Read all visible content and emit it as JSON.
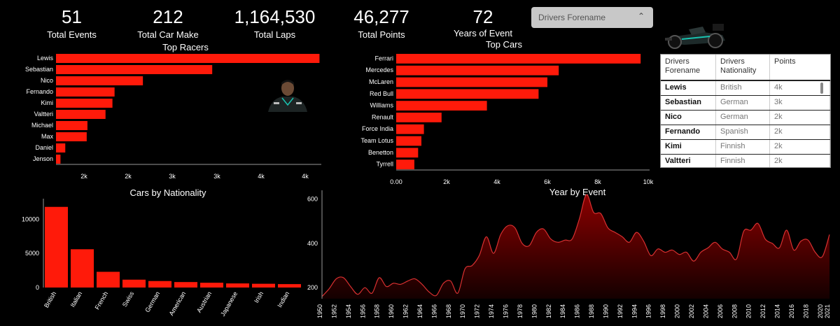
{
  "kpis": [
    {
      "value": "51",
      "label": "Total Events"
    },
    {
      "value": "212",
      "label": "Total Car Make"
    },
    {
      "value": "1,164,530",
      "label": "Total Laps"
    },
    {
      "value": "46,277",
      "label": "Total Points"
    },
    {
      "value": "72",
      "label": "Years of Event"
    }
  ],
  "filter": {
    "label": "Drivers Forename"
  },
  "images": {
    "car": "formula-one-car-icon",
    "driver": "driver-portrait-icon"
  },
  "table": {
    "headers": [
      "Drivers Forename",
      "Drivers Nationality",
      "Points"
    ],
    "rows": [
      [
        "Lewis",
        "British",
        "4k"
      ],
      [
        "Sebastian",
        "German",
        "3k"
      ],
      [
        "Nico",
        "German",
        "2k"
      ],
      [
        "Fernando",
        "Spanish",
        "2k"
      ],
      [
        "Kimi",
        "Finnish",
        "2k"
      ],
      [
        "Valtteri",
        "Finnish",
        "2k"
      ]
    ]
  },
  "colors": {
    "bar": "#ff1a0a",
    "area_top": "#8b0000",
    "line": "#d83030"
  },
  "chart_data": [
    {
      "type": "bar",
      "orientation": "horizontal",
      "title": "Top Racers",
      "categories": [
        "Lewis",
        "Sebastian",
        "Nico",
        "Fernando",
        "Kimi",
        "Valtteri",
        "Michael",
        "Max",
        "Daniel",
        "Jenson"
      ],
      "values": [
        4415,
        3098,
        2247,
        1899,
        1873,
        1788,
        1566,
        1557,
        1294,
        1235
      ],
      "xticks": [
        "2k",
        "2k",
        "3k",
        "3k",
        "4k",
        "4k"
      ],
      "xlim": [
        1180,
        4420
      ]
    },
    {
      "type": "bar",
      "orientation": "horizontal",
      "title": "Top Cars",
      "categories": [
        "Ferrari",
        "Mercedes",
        "McLaren",
        "Red Bull",
        "Williams",
        "Renault",
        "Force India",
        "Team Lotus",
        "Benetton",
        "Tyrrell"
      ],
      "values": [
        9700,
        6450,
        6000,
        5650,
        3600,
        1800,
        1100,
        1000,
        870,
        720
      ],
      "xticks": [
        "0.00",
        "2k",
        "4k",
        "6k",
        "8k",
        "10k"
      ],
      "xlim": [
        0,
        10000
      ]
    },
    {
      "type": "bar",
      "title": "Cars by Nationality",
      "categories": [
        "British",
        "Italian",
        "French",
        "Swiss",
        "German",
        "American",
        "Austrian",
        "Japanese",
        "Irish",
        "Indian"
      ],
      "values": [
        11800,
        5600,
        2300,
        1150,
        950,
        800,
        700,
        600,
        550,
        500
      ],
      "yticks": [
        "0",
        "5000",
        "10000"
      ],
      "ylim": [
        0,
        13000
      ]
    },
    {
      "type": "area",
      "title": "Year by Event",
      "x": [
        1950,
        1951,
        1952,
        1953,
        1954,
        1955,
        1956,
        1957,
        1958,
        1959,
        1960,
        1961,
        1962,
        1963,
        1964,
        1965,
        1966,
        1967,
        1968,
        1969,
        1970,
        1971,
        1972,
        1973,
        1974,
        1975,
        1976,
        1977,
        1978,
        1979,
        1980,
        1981,
        1982,
        1983,
        1984,
        1985,
        1986,
        1987,
        1988,
        1989,
        1990,
        1991,
        1992,
        1993,
        1994,
        1995,
        1996,
        1997,
        1998,
        1999,
        2000,
        2001,
        2002,
        2003,
        2004,
        2005,
        2006,
        2007,
        2008,
        2009,
        2010,
        2011,
        2012,
        2013,
        2014,
        2015,
        2016,
        2017,
        2018,
        2019,
        2020,
        2021
      ],
      "y": [
        160,
        195,
        240,
        245,
        205,
        170,
        200,
        175,
        245,
        205,
        220,
        215,
        230,
        240,
        215,
        180,
        165,
        220,
        230,
        175,
        285,
        300,
        345,
        430,
        355,
        440,
        480,
        470,
        400,
        390,
        450,
        465,
        420,
        405,
        415,
        420,
        510,
        620,
        540,
        535,
        470,
        450,
        430,
        405,
        450,
        410,
        345,
        375,
        360,
        370,
        350,
        360,
        320,
        360,
        380,
        405,
        375,
        360,
        330,
        455,
        460,
        490,
        420,
        400,
        380,
        460,
        370,
        410,
        415,
        360,
        340,
        440
      ],
      "yticks": [
        "200",
        "400",
        "600"
      ],
      "ylim": [
        150,
        640
      ]
    }
  ]
}
